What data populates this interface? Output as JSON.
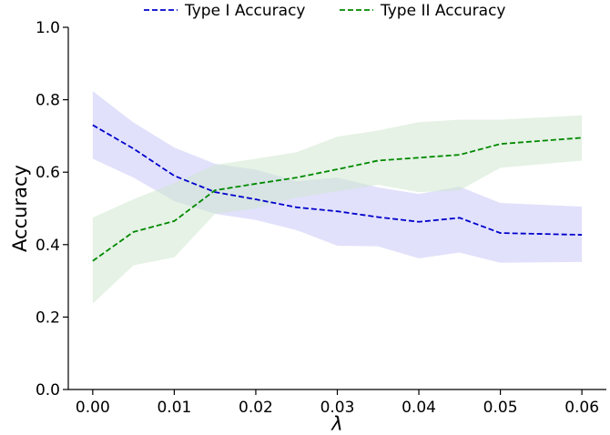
{
  "chart_data": {
    "type": "line",
    "title": "",
    "xlabel": "λ",
    "ylabel": "Accuracy",
    "xlim": [
      -0.003,
      0.063
    ],
    "ylim": [
      0.0,
      1.0
    ],
    "x_ticks": [
      0.0,
      0.01,
      0.02,
      0.03,
      0.04,
      0.05,
      0.06
    ],
    "x_tick_labels": [
      "0.00",
      "0.01",
      "0.02",
      "0.03",
      "0.04",
      "0.05",
      "0.06"
    ],
    "y_ticks": [
      0.0,
      0.2,
      0.4,
      0.6,
      0.8,
      1.0
    ],
    "y_tick_labels": [
      "0.0",
      "0.2",
      "0.4",
      "0.6",
      "0.8",
      "1.0"
    ],
    "grid": false,
    "legend_position": "top-center",
    "x": [
      0.0,
      0.005,
      0.01,
      0.015,
      0.02,
      0.025,
      0.03,
      0.035,
      0.04,
      0.045,
      0.05,
      0.06
    ],
    "series": [
      {
        "name": "Type I Accuracy",
        "color": "#0000cc",
        "band_color": "#c8c8f8",
        "values": [
          0.73,
          0.665,
          0.59,
          0.545,
          0.525,
          0.503,
          0.492,
          0.476,
          0.463,
          0.474,
          0.432,
          0.427
        ],
        "lower": [
          0.637,
          0.585,
          0.52,
          0.485,
          0.468,
          0.44,
          0.397,
          0.395,
          0.362,
          0.378,
          0.35,
          0.352
        ],
        "upper": [
          0.824,
          0.737,
          0.668,
          0.623,
          0.607,
          0.575,
          0.585,
          0.558,
          0.54,
          0.56,
          0.515,
          0.505
        ]
      },
      {
        "name": "Type II Accuracy",
        "color": "#008800",
        "band_color": "#cfe8cf",
        "values": [
          0.355,
          0.435,
          0.465,
          0.55,
          0.568,
          0.585,
          0.608,
          0.632,
          0.64,
          0.648,
          0.678,
          0.695
        ],
        "lower": [
          0.237,
          0.343,
          0.365,
          0.485,
          0.5,
          0.53,
          0.547,
          0.565,
          0.545,
          0.55,
          0.612,
          0.632
        ],
        "upper": [
          0.475,
          0.525,
          0.57,
          0.62,
          0.637,
          0.655,
          0.698,
          0.715,
          0.738,
          0.745,
          0.745,
          0.757
        ]
      }
    ]
  }
}
